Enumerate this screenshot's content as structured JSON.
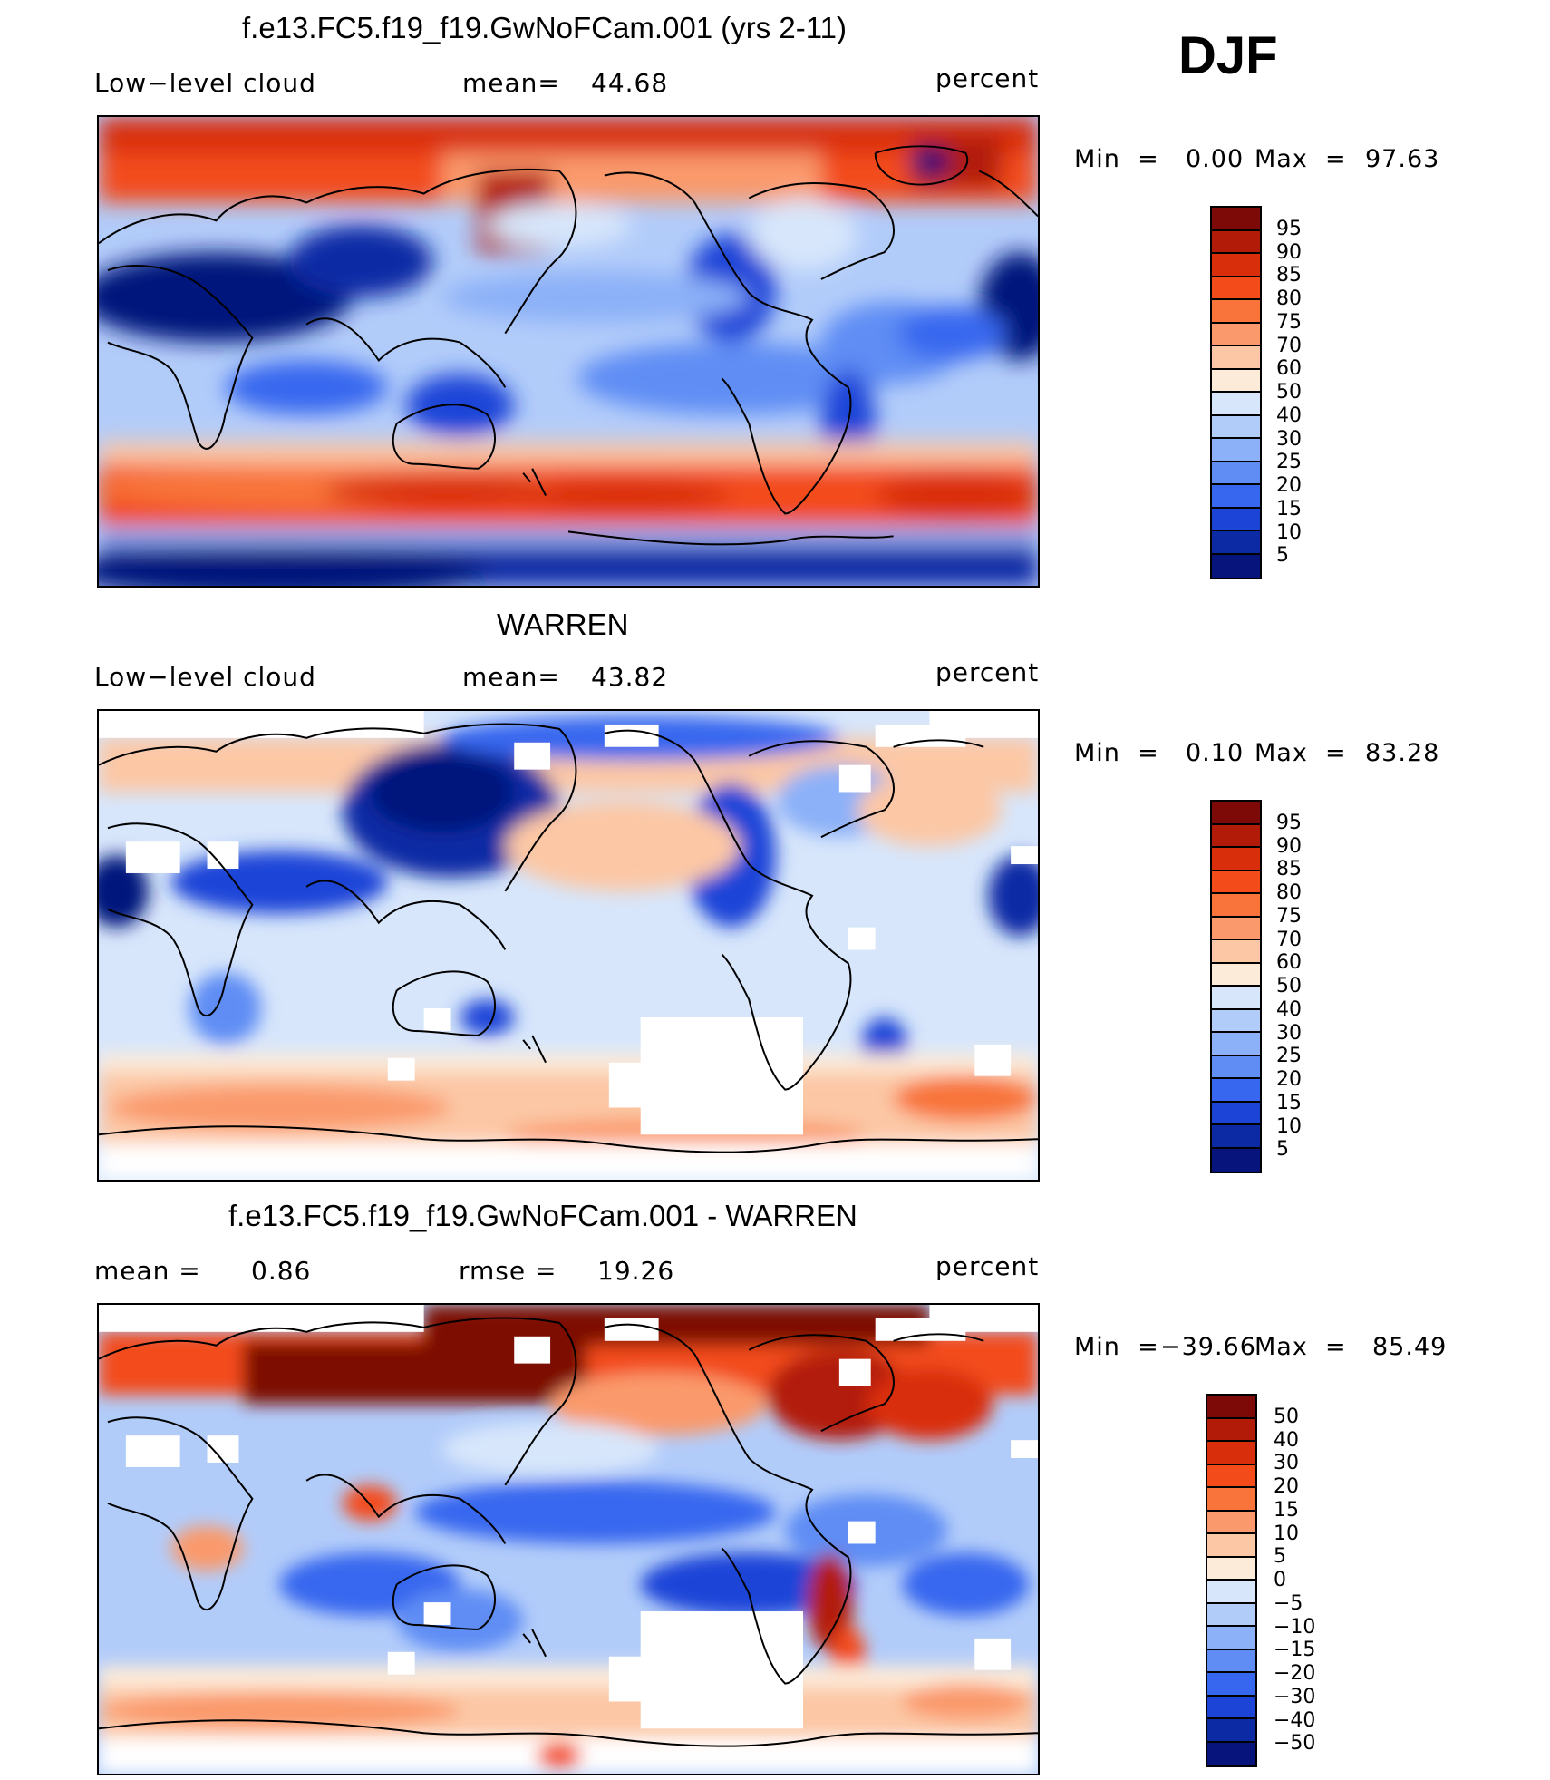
{
  "season": "DJF",
  "panels": [
    {
      "title": "f.e13.FC5.f19_f19.GwNoFCam.001 (yrs 2-11)",
      "left_label": "Low−level cloud",
      "stat_label": "mean=",
      "stat_value": "44.68",
      "units": "percent",
      "min_label": "Min  =",
      "min_value": "0.00",
      "max_label": "Max  =",
      "max_value": "97.63",
      "colorbar_levels": [
        "95",
        "90",
        "85",
        "80",
        "75",
        "70",
        "60",
        "50",
        "40",
        "30",
        "25",
        "20",
        "15",
        "10",
        "5"
      ],
      "colorbar_colors": [
        "#7d0a06",
        "#b21b08",
        "#d92e0c",
        "#f34c1a",
        "#f8743a",
        "#fa9a6c",
        "#fcc7a5",
        "#fdebd9",
        "#d7e6fb",
        "#b2ccfa",
        "#8cb1f8",
        "#5f8df4",
        "#3767ef",
        "#1c45d8",
        "#0d2aa5",
        "#06147b"
      ],
      "chart_data": {
        "type": "heatmap",
        "title": "f.e13.FC5.f19_f19.GwNoFCam.001 (yrs 2-11)",
        "field": "Low−level cloud",
        "units": "percent",
        "mean": 44.68,
        "min": 0.0,
        "max": 97.63,
        "contour_levels": [
          5,
          10,
          15,
          20,
          25,
          30,
          40,
          50,
          60,
          70,
          75,
          80,
          85,
          90,
          95
        ]
      }
    },
    {
      "title": "WARREN",
      "left_label": "Low−level cloud",
      "stat_label": "mean=",
      "stat_value": "43.82",
      "units": "percent",
      "min_label": "Min  =",
      "min_value": "0.10",
      "max_label": "Max  =",
      "max_value": "83.28",
      "colorbar_levels": [
        "95",
        "90",
        "85",
        "80",
        "75",
        "70",
        "60",
        "50",
        "40",
        "30",
        "25",
        "20",
        "15",
        "10",
        "5"
      ],
      "colorbar_colors": [
        "#7d0a06",
        "#b21b08",
        "#d92e0c",
        "#f34c1a",
        "#f8743a",
        "#fa9a6c",
        "#fcc7a5",
        "#fdebd9",
        "#d7e6fb",
        "#b2ccfa",
        "#8cb1f8",
        "#5f8df4",
        "#3767ef",
        "#1c45d8",
        "#0d2aa5",
        "#06147b"
      ],
      "chart_data": {
        "type": "heatmap",
        "title": "WARREN",
        "field": "Low−level cloud",
        "units": "percent",
        "mean": 43.82,
        "min": 0.1,
        "max": 83.28,
        "contour_levels": [
          5,
          10,
          15,
          20,
          25,
          30,
          40,
          50,
          60,
          70,
          75,
          80,
          85,
          90,
          95
        ]
      }
    },
    {
      "title": "f.e13.FC5.f19_f19.GwNoFCam.001 - WARREN",
      "left_label": "mean =",
      "left_value": "0.86",
      "stat_label": "rmse =",
      "stat_value": "19.26",
      "units": "percent",
      "min_label": "Min  =",
      "min_value": "−39.66",
      "max_label": "Max  =",
      "max_value": "85.49",
      "colorbar_levels": [
        "50",
        "40",
        "30",
        "20",
        "15",
        "10",
        "5",
        "0",
        "−5",
        "−10",
        "−15",
        "−20",
        "−30",
        "−40",
        "−50"
      ],
      "colorbar_colors": [
        "#7d0a06",
        "#b21b08",
        "#d92e0c",
        "#f34c1a",
        "#f8743a",
        "#fa9a6c",
        "#fcc7a5",
        "#fdebd9",
        "#d7e6fb",
        "#b2ccfa",
        "#8cb1f8",
        "#5f8df4",
        "#3767ef",
        "#1c45d8",
        "#0d2aa5",
        "#06147b"
      ],
      "chart_data": {
        "type": "heatmap",
        "title": "f.e13.FC5.f19_f19.GwNoFCam.001 - WARREN",
        "units": "percent",
        "mean": 0.86,
        "rmse": 19.26,
        "min": -39.66,
        "max": 85.49,
        "contour_levels": [
          -50,
          -40,
          -30,
          -20,
          -15,
          -10,
          -5,
          0,
          5,
          10,
          15,
          20,
          30,
          40,
          50
        ]
      }
    }
  ]
}
